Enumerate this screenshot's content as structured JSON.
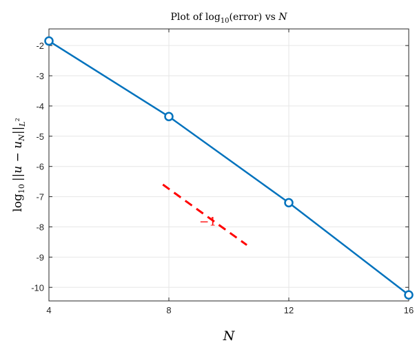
{
  "chart_data": {
    "type": "line",
    "title": {
      "prefix": "Plot of log",
      "sub": "10",
      "middle": "(error) vs ",
      "var": "N"
    },
    "xlabel": "N",
    "ylabel": {
      "log": "log",
      "sub10": "10",
      "body": "||u − u",
      "subN": "N",
      "bars": "||",
      "subL": "L",
      "supL": "2"
    },
    "xlim": [
      4,
      16
    ],
    "ylim": [
      -10.45,
      -1.45
    ],
    "xticks": [
      4,
      8,
      12,
      16
    ],
    "yticks": [
      -2,
      -3,
      -4,
      -5,
      -6,
      -7,
      -8,
      -9,
      -10
    ],
    "ytick_labels": [
      "-2",
      "-3",
      "-4",
      "-5",
      "-6",
      "-7",
      "-8",
      "-9",
      "-10"
    ],
    "grid": true,
    "series": [
      {
        "x": [
          4,
          8,
          12,
          16
        ],
        "y": [
          -1.85,
          -4.35,
          -7.2,
          -10.25
        ],
        "color": "#0072BD",
        "marker": "circle"
      }
    ],
    "reference_line": {
      "x": [
        7.8,
        10.6
      ],
      "y": [
        -6.6,
        -8.6
      ],
      "color": "#FF0000",
      "style": "dashed",
      "label": "−1",
      "label_at": [
        9.3,
        -7.95
      ]
    }
  }
}
